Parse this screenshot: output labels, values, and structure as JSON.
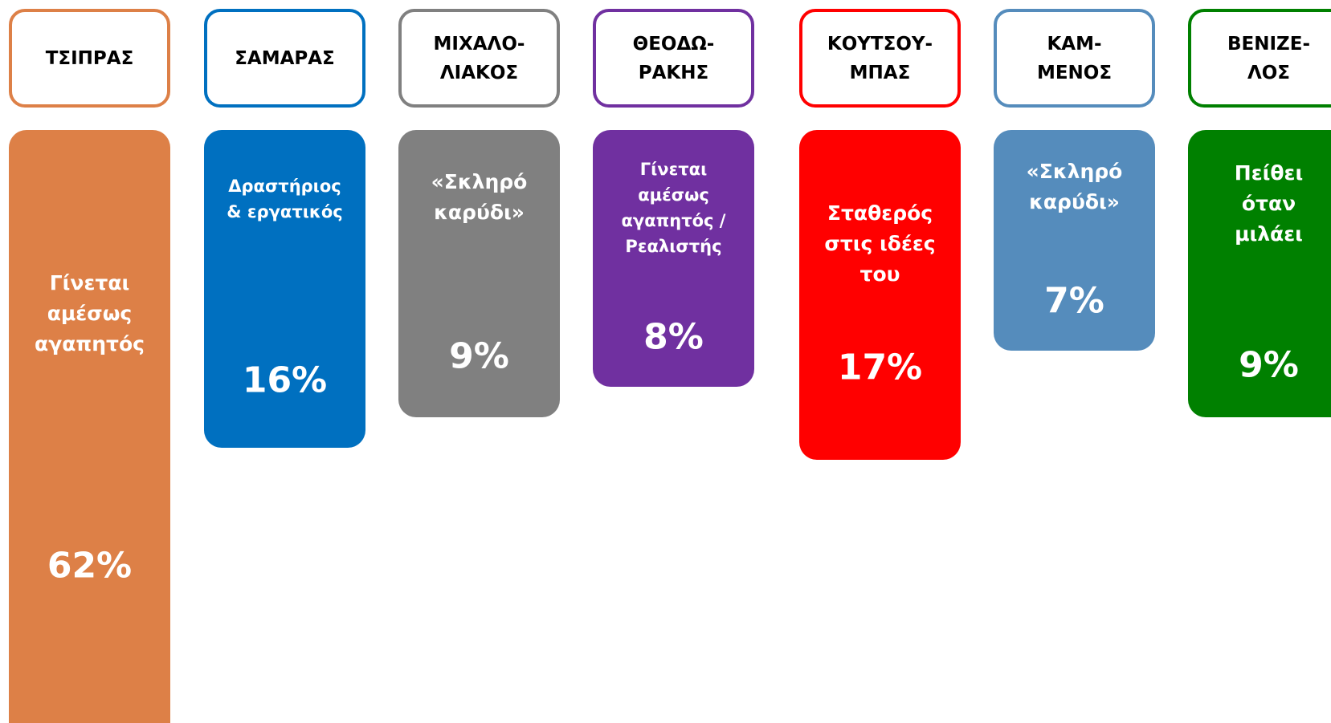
{
  "columns": [
    {
      "name": "ΤΣΙΠΡΑΣ",
      "description": "Γίνεται\nαμέσως\nαγαπητός",
      "percent": "62%",
      "color": "#dd8047"
    },
    {
      "name": "ΣΑΜΑΡΑΣ",
      "description": "Δραστήριος\n& εργατικός",
      "percent": "16%",
      "color": "#0070c0"
    },
    {
      "name": "ΜΙΧΑΛΟ-\nΛΙΑΚΟΣ",
      "description": "«Σκληρό\nκαρύδι»",
      "percent": "9%",
      "color": "#808080"
    },
    {
      "name": "ΘΕΟΔΩ-\nΡΑΚΗΣ",
      "description": "Γίνεται\nαμέσως\nαγαπητός /\nΡεαλιστής",
      "percent": "8%",
      "color": "#7030a0"
    },
    {
      "name": "ΚΟΥΤΣΟΥ-\nΜΠΑΣ",
      "description": "Σταθερός\nστις ιδέες\nτου",
      "percent": "17%",
      "color": "#ff0000"
    },
    {
      "name": "ΚΑΜ-\nΜΕΝΟΣ",
      "description": "«Σκληρό\nκαρύδι»",
      "percent": "7%",
      "color": "#558cbc"
    },
    {
      "name": "ΒΕΝΙΖΕ-\nΛΟΣ",
      "description": "Πείθει\nόταν\nμιλάει",
      "percent": "9%",
      "color": "#008000"
    }
  ]
}
